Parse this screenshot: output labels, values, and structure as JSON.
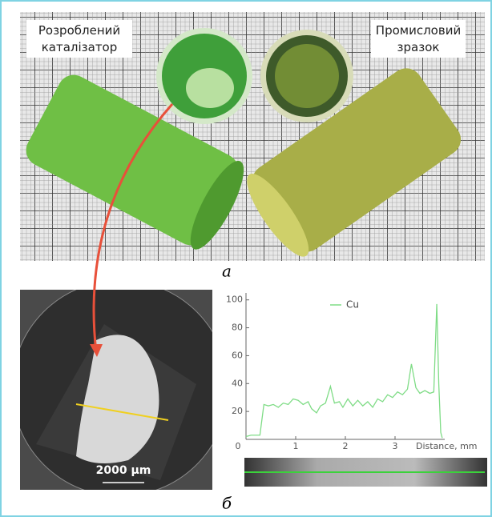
{
  "figure": {
    "label_left": "Розроблений каталізатор",
    "label_right": "Промисловий зразок",
    "caption_a": "а",
    "caption_b": "б",
    "scale_bar": "2000 µm"
  },
  "chart_data": {
    "type": "line",
    "x": [
      0,
      0.1,
      0.28,
      0.32,
      0.36,
      0.45,
      0.55,
      0.65,
      0.75,
      0.85,
      0.95,
      1.05,
      1.15,
      1.25,
      1.32,
      1.42,
      1.5,
      1.6,
      1.7,
      1.78,
      1.88,
      1.95,
      2.05,
      2.15,
      2.25,
      2.35,
      2.45,
      2.55,
      2.65,
      2.75,
      2.85,
      2.95,
      3.05,
      3.15,
      3.25,
      3.33,
      3.42,
      3.5,
      3.6,
      3.7,
      3.78,
      3.84,
      3.88,
      3.92,
      3.95
    ],
    "series": [
      {
        "name": "Cu",
        "color": "#7fdc86",
        "values": [
          2,
          3,
          3,
          14,
          25,
          24,
          25,
          23,
          26,
          25,
          29,
          28,
          25,
          27,
          22,
          19,
          24,
          26,
          38,
          26,
          27,
          23,
          29,
          24,
          28,
          24,
          27,
          23,
          29,
          27,
          32,
          30,
          34,
          32,
          36,
          54,
          37,
          33,
          35,
          33,
          34,
          97,
          40,
          5,
          1
        ]
      }
    ],
    "x_label": "Distance, mm",
    "xlim": [
      0,
      4
    ],
    "xticks": [
      0,
      1,
      2,
      3
    ],
    "ylim": [
      0,
      105
    ],
    "yticks": [
      20,
      40,
      60,
      80,
      100
    ]
  }
}
